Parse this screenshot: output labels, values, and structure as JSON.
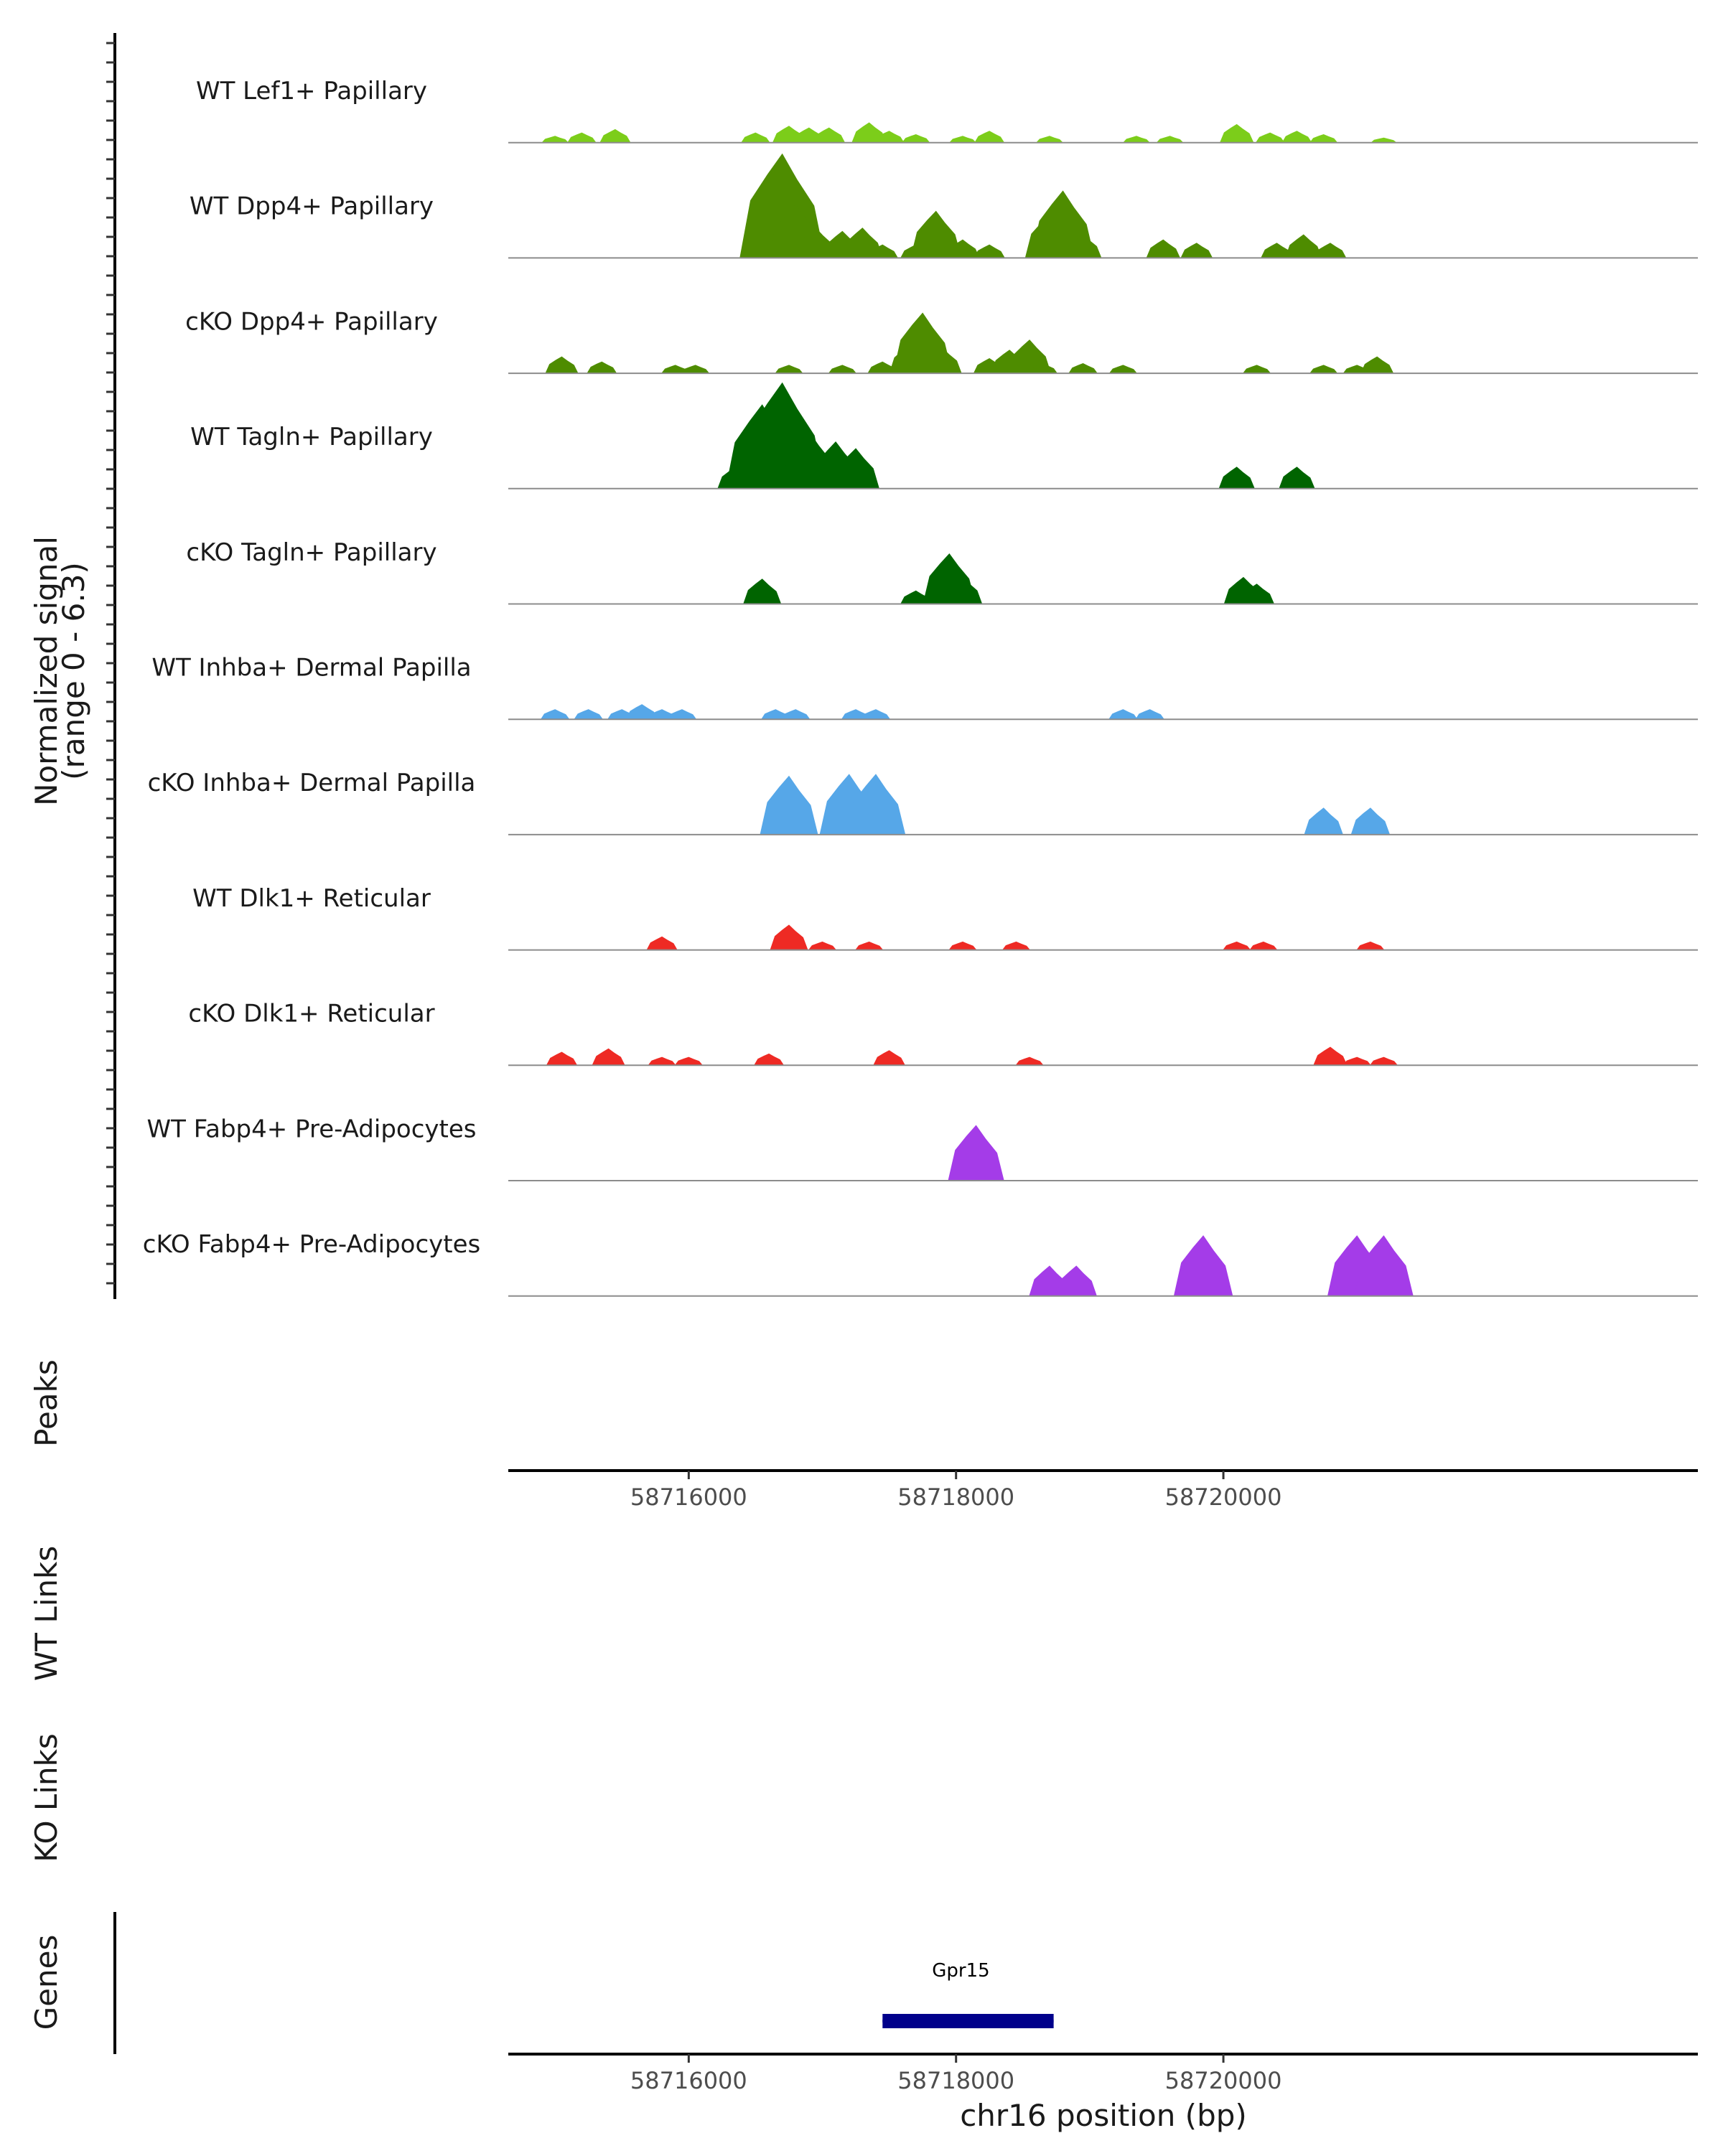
{
  "chart_data": {
    "type": "area",
    "title": "",
    "chromosome": "chr16",
    "xlim": [
      58714650,
      58723550
    ],
    "signal_range": [
      0,
      6.3
    ],
    "ylabel_line1": "Normalized signal",
    "ylabel_line2": "(range 0 - 6.3)",
    "xlabel": "chr16 position (bp)",
    "x_ticks": [
      58716000,
      58718000,
      58720000
    ],
    "x_tick_labels": [
      "58716000",
      "58718000",
      "58720000"
    ],
    "tracks": [
      {
        "name": "WT Lef1+ Papillary",
        "color": "#7ccd1a",
        "peaks": [
          [
            58715000,
            0.4
          ],
          [
            58715200,
            0.6
          ],
          [
            58715450,
            0.8
          ],
          [
            58716500,
            0.6
          ],
          [
            58716750,
            1.0
          ],
          [
            58716900,
            0.9
          ],
          [
            58717050,
            0.9
          ],
          [
            58717350,
            1.2
          ],
          [
            58717500,
            0.7
          ],
          [
            58717700,
            0.5
          ],
          [
            58718050,
            0.4
          ],
          [
            58718250,
            0.7
          ],
          [
            58718700,
            0.4
          ],
          [
            58719350,
            0.4
          ],
          [
            58719600,
            0.4
          ],
          [
            58720100,
            1.1
          ],
          [
            58720350,
            0.6
          ],
          [
            58720550,
            0.7
          ],
          [
            58720750,
            0.5
          ],
          [
            58721200,
            0.3
          ]
        ]
      },
      {
        "name": "WT Dpp4+ Papillary",
        "color": "#4e8c00",
        "peaks": [
          [
            58716600,
            2.8
          ],
          [
            58716700,
            6.2
          ],
          [
            58716800,
            3.2
          ],
          [
            58716950,
            1.8
          ],
          [
            58717150,
            1.6
          ],
          [
            58717300,
            1.8
          ],
          [
            58717450,
            0.8
          ],
          [
            58717700,
            0.8
          ],
          [
            58717850,
            2.8
          ],
          [
            58718050,
            1.1
          ],
          [
            58718250,
            0.8
          ],
          [
            58718700,
            2.6
          ],
          [
            58718800,
            4.0
          ],
          [
            58718950,
            1.4
          ],
          [
            58719550,
            1.1
          ],
          [
            58719800,
            0.9
          ],
          [
            58720400,
            0.9
          ],
          [
            58720600,
            1.4
          ],
          [
            58720800,
            0.9
          ]
        ]
      },
      {
        "name": "cKO Dpp4+ Papillary",
        "color": "#4e8c00",
        "peaks": [
          [
            58715050,
            1.0
          ],
          [
            58715350,
            0.7
          ],
          [
            58715900,
            0.5
          ],
          [
            58716050,
            0.5
          ],
          [
            58716750,
            0.5
          ],
          [
            58717150,
            0.5
          ],
          [
            58717450,
            0.7
          ],
          [
            58717650,
            1.7
          ],
          [
            58717750,
            3.6
          ],
          [
            58717900,
            1.5
          ],
          [
            58718250,
            0.9
          ],
          [
            58718400,
            1.4
          ],
          [
            58718550,
            2.0
          ],
          [
            58718650,
            0.6
          ],
          [
            58718950,
            0.6
          ],
          [
            58719250,
            0.5
          ],
          [
            58720250,
            0.5
          ],
          [
            58720750,
            0.5
          ],
          [
            58721000,
            0.5
          ],
          [
            58721150,
            1.0
          ]
        ]
      },
      {
        "name": "WT Tagln+ Papillary",
        "color": "#006400",
        "peaks": [
          [
            58716350,
            1.3
          ],
          [
            58716550,
            5.0
          ],
          [
            58716700,
            6.3
          ],
          [
            58716900,
            3.4
          ],
          [
            58717100,
            2.8
          ],
          [
            58717250,
            2.4
          ],
          [
            58720100,
            1.3
          ],
          [
            58720550,
            1.3
          ]
        ]
      },
      {
        "name": "cKO Tagln+ Papillary",
        "color": "#006400",
        "peaks": [
          [
            58716550,
            1.5
          ],
          [
            58717700,
            0.8
          ],
          [
            58717950,
            3.0
          ],
          [
            58718050,
            1.6
          ],
          [
            58720150,
            1.6
          ],
          [
            58720250,
            1.2
          ]
        ]
      },
      {
        "name": "WT Inhba+ Dermal Papilla",
        "color": "#56a7e8",
        "peaks": [
          [
            58715000,
            0.6
          ],
          [
            58715250,
            0.6
          ],
          [
            58715500,
            0.6
          ],
          [
            58715650,
            0.9
          ],
          [
            58715800,
            0.6
          ],
          [
            58715950,
            0.6
          ],
          [
            58716650,
            0.6
          ],
          [
            58716800,
            0.6
          ],
          [
            58717250,
            0.6
          ],
          [
            58717400,
            0.6
          ],
          [
            58719250,
            0.6
          ],
          [
            58719450,
            0.6
          ]
        ]
      },
      {
        "name": "cKO Inhba+ Dermal Papilla",
        "color": "#56a7e8",
        "peaks": [
          [
            58716750,
            3.5
          ],
          [
            58717200,
            3.6
          ],
          [
            58717400,
            3.6
          ],
          [
            58720750,
            1.6
          ],
          [
            58721100,
            1.6
          ]
        ]
      },
      {
        "name": "WT Dlk1+ Reticular",
        "color": "#ee2a24",
        "peaks": [
          [
            58715800,
            0.8
          ],
          [
            58716750,
            1.5
          ],
          [
            58717000,
            0.5
          ],
          [
            58717350,
            0.5
          ],
          [
            58718050,
            0.5
          ],
          [
            58718450,
            0.5
          ],
          [
            58720100,
            0.5
          ],
          [
            58720300,
            0.5
          ],
          [
            58721100,
            0.5
          ]
        ]
      },
      {
        "name": "cKO Dlk1+ Reticular",
        "color": "#ee2a24",
        "peaks": [
          [
            58715050,
            0.8
          ],
          [
            58715400,
            1.0
          ],
          [
            58715800,
            0.5
          ],
          [
            58716000,
            0.5
          ],
          [
            58716600,
            0.7
          ],
          [
            58717500,
            0.9
          ],
          [
            58718550,
            0.5
          ],
          [
            58720800,
            1.1
          ],
          [
            58721000,
            0.5
          ],
          [
            58721200,
            0.5
          ]
        ]
      },
      {
        "name": "WT Fabp4+ Pre-Adipocytes",
        "color": "#a43ce8",
        "peaks": [
          [
            58718150,
            3.3
          ]
        ]
      },
      {
        "name": "cKO Fabp4+ Pre-Adipocytes",
        "color": "#a43ce8",
        "peaks": [
          [
            58718700,
            1.8
          ],
          [
            58718900,
            1.8
          ],
          [
            58719850,
            3.6
          ],
          [
            58721000,
            3.6
          ],
          [
            58721200,
            3.6
          ]
        ]
      }
    ],
    "panels": {
      "peaks": "Peaks",
      "wt_links": "WT Links",
      "ko_links": "KO Links",
      "genes": "Genes"
    },
    "genes": [
      {
        "name": "Gpr15",
        "start": 58717450,
        "end": 58718730,
        "color": "#00008b"
      }
    ]
  }
}
